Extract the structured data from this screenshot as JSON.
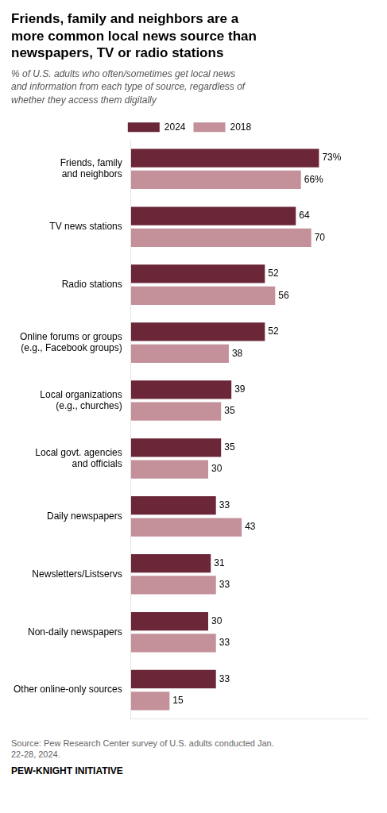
{
  "chart_data": {
    "type": "bar",
    "orientation": "horizontal",
    "title": "Friends, family and neighbors are a\nmore common local news source than\nnewspapers, TV or radio stations",
    "subtitle": "% of U.S. adults who often/sometimes get local news\nand information from each type of source, regardless of\nwhether they access them digitally",
    "categories": [
      "Friends, family\nand neighbors",
      "TV news stations",
      "Radio stations",
      "Online forums or groups\n(e.g., Facebook groups)",
      "Local organizations\n(e.g., churches)",
      "Local govt. agencies\nand officials",
      "Daily newspapers",
      "Newsletters/Listservs",
      "Non-daily newspapers",
      "Other online-only sources"
    ],
    "series": [
      {
        "name": "2024",
        "color": "#6b2737",
        "values": [
          73,
          64,
          52,
          52,
          39,
          35,
          33,
          31,
          30,
          33
        ],
        "value_labels": [
          "73%",
          "64",
          "52",
          "52",
          "39",
          "35",
          "33",
          "31",
          "30",
          "33"
        ]
      },
      {
        "name": "2018",
        "color": "#c4909a",
        "values": [
          66,
          70,
          56,
          38,
          35,
          30,
          43,
          33,
          33,
          15
        ],
        "value_labels": [
          "66%",
          "70",
          "56",
          "38",
          "35",
          "30",
          "43",
          "33",
          "33",
          "15"
        ]
      }
    ],
    "xlim": [
      0,
      92
    ],
    "data_labels": true,
    "tick_labels": "y",
    "grid": false,
    "legend": "top",
    "source": "Source: Pew Research Center survey of U.S. adults conducted Jan.\n22-28, 2024.",
    "footer": "PEW-KNIGHT INITIATIVE"
  }
}
